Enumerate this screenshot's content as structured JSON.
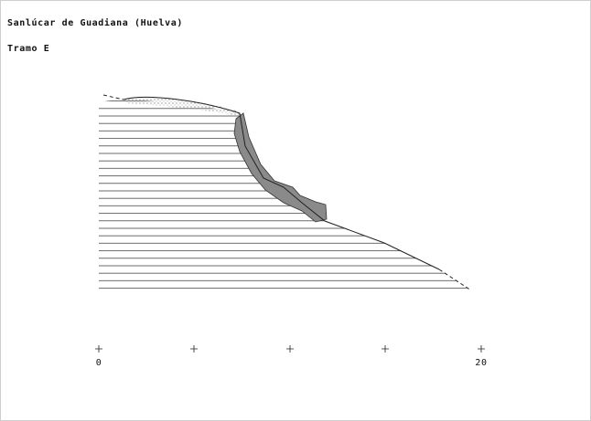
{
  "header": {
    "title": "Sanlúcar de Guadiana (Huelva)",
    "subtitle": "Tramo E"
  },
  "scale": {
    "labels": [
      "0",
      "20"
    ]
  }
}
